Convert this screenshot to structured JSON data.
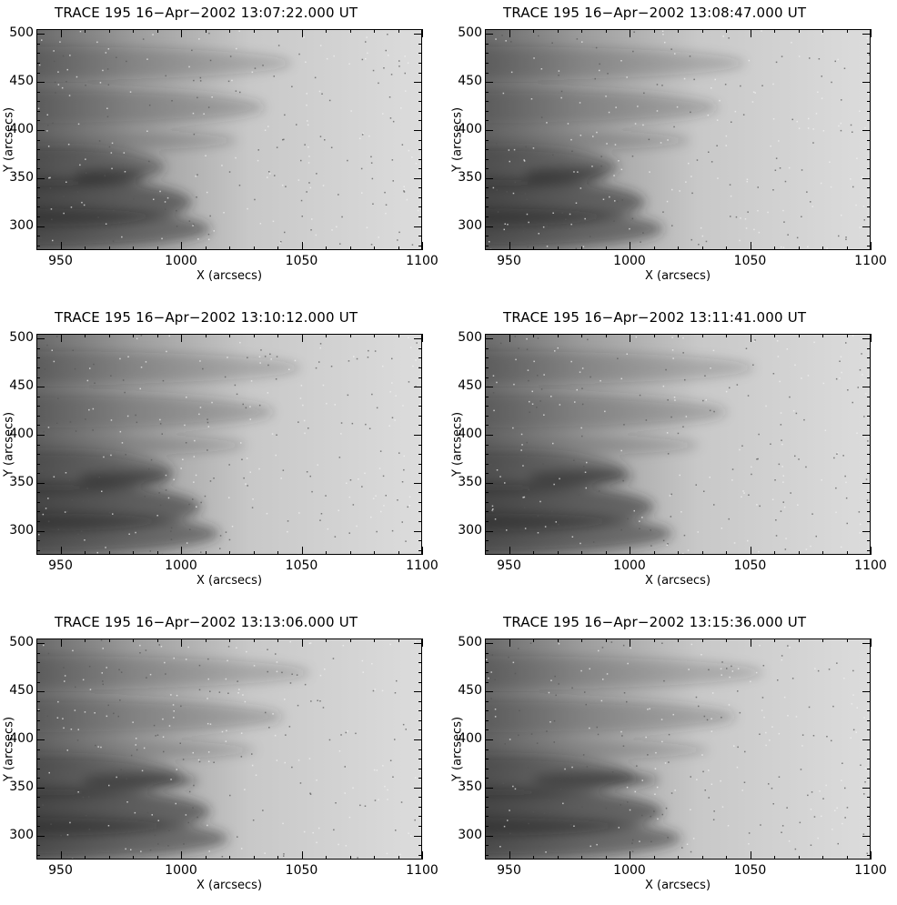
{
  "figure": {
    "panels": [
      {
        "title": "TRACE 195 16−Apr−2002 13:07:22.000 UT"
      },
      {
        "title": "TRACE 195 16−Apr−2002 13:08:47.000 UT"
      },
      {
        "title": "TRACE 195 16−Apr−2002 13:10:12.000 UT"
      },
      {
        "title": "TRACE 195 16−Apr−2002 13:11:41.000 UT"
      },
      {
        "title": "TRACE 195 16−Apr−2002 13:13:06.000 UT"
      },
      {
        "title": "TRACE 195 16−Apr−2002 13:15:36.000 UT"
      }
    ],
    "x_axis": {
      "label": "X (arcsecs)",
      "range": [
        940,
        1100
      ],
      "ticks": [
        "950",
        "1000",
        "1050",
        "1100"
      ]
    },
    "y_axis": {
      "label": "Y (arcsecs)",
      "range": [
        275,
        505
      ],
      "ticks": [
        "300",
        "350",
        "400",
        "450",
        "500"
      ]
    }
  }
}
